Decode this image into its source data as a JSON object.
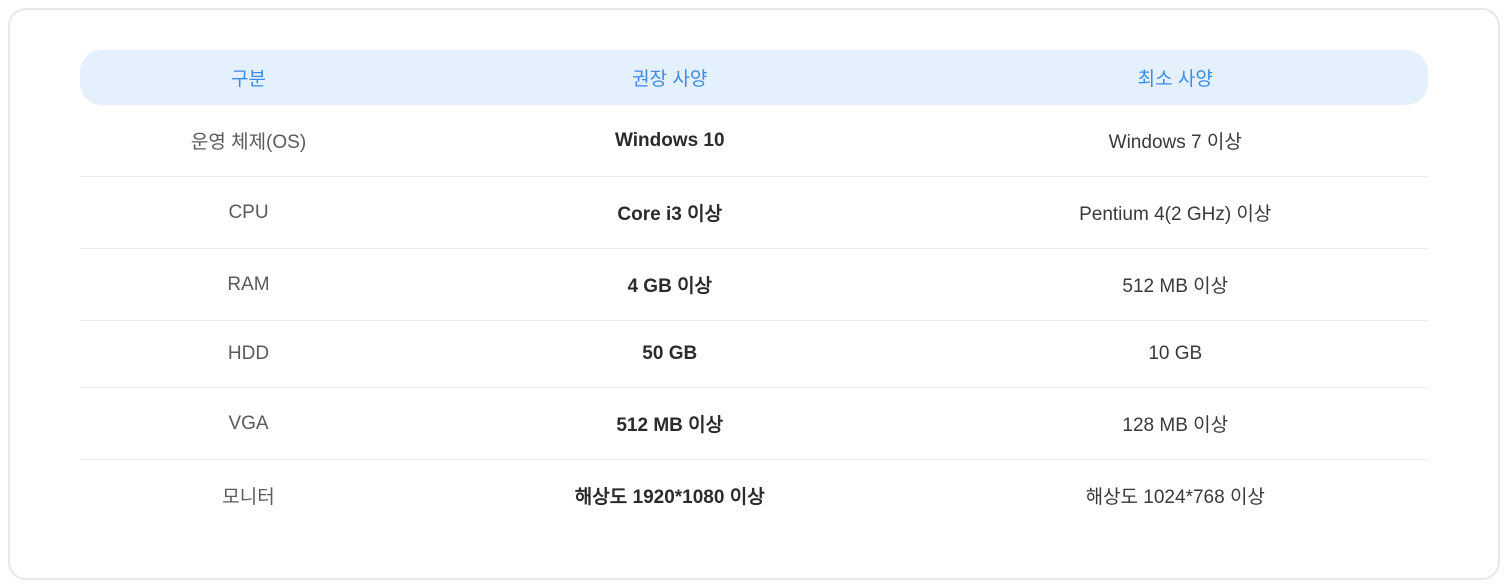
{
  "table": {
    "type": "table",
    "header_bg_color": "#e4f0fb",
    "header_text_color": "#3b8de8",
    "row_divider_color": "#ededed",
    "outer_border_color": "#e8e8e8",
    "background_color": "#ffffff",
    "header_fontsize": 19,
    "body_fontsize": 19,
    "columns": [
      {
        "label": "구분",
        "width": "25%"
      },
      {
        "label": "권장 사양",
        "width": "37.5%"
      },
      {
        "label": "최소 사양",
        "width": "37.5%"
      }
    ],
    "rows": [
      {
        "category": "운영 체제(OS)",
        "recommended": "Windows 10",
        "minimum": "Windows 7 이상"
      },
      {
        "category": "CPU",
        "recommended": "Core i3 이상",
        "minimum": "Pentium 4(2 GHz) 이상"
      },
      {
        "category": "RAM",
        "recommended": "4 GB 이상",
        "minimum": "512 MB 이상"
      },
      {
        "category": "HDD",
        "recommended": "50 GB",
        "minimum": "10 GB"
      },
      {
        "category": "VGA",
        "recommended": "512 MB 이상",
        "minimum": "128 MB 이상"
      },
      {
        "category": "모니터",
        "recommended": "해상도 1920*1080 이상",
        "minimum": "해상도 1024*768 이상"
      }
    ],
    "column_styles": {
      "category": {
        "color": "#5a5a5a",
        "font_weight": 400
      },
      "recommended": {
        "color": "#2b2b2b",
        "font_weight": 700
      },
      "minimum": {
        "color": "#3a3a3a",
        "font_weight": 400
      }
    }
  }
}
